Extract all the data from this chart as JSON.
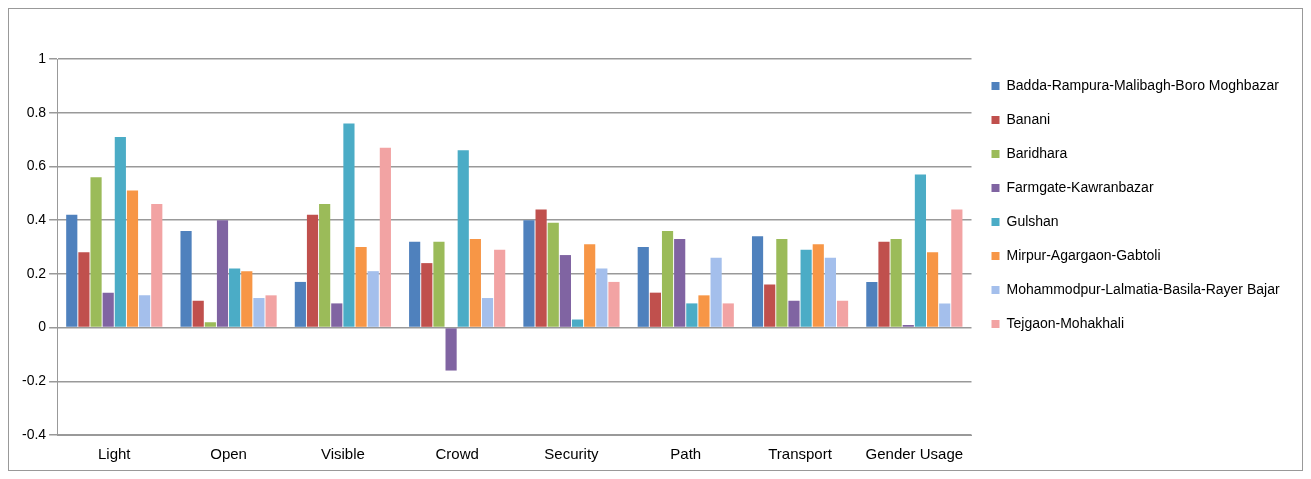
{
  "chart_data": {
    "type": "bar",
    "categories": [
      "Light",
      "Open",
      "Visible",
      "Crowd",
      "Security",
      "Path",
      "Transport",
      "Gender Usage"
    ],
    "series": [
      {
        "name": "Badda-Rampura-Malibagh-Boro Moghbazar",
        "color": "#4f81bd",
        "values": [
          0.42,
          0.36,
          0.17,
          0.32,
          0.4,
          0.3,
          0.34,
          0.17
        ]
      },
      {
        "name": "Banani",
        "color": "#c0504d",
        "values": [
          0.28,
          0.1,
          0.42,
          0.24,
          0.44,
          0.13,
          0.16,
          0.32
        ]
      },
      {
        "name": "Baridhara",
        "color": "#9bbb59",
        "values": [
          0.56,
          0.02,
          0.46,
          0.32,
          0.39,
          0.36,
          0.33,
          0.33
        ]
      },
      {
        "name": "Farmgate-Kawranbazar",
        "color": "#8064a2",
        "values": [
          0.13,
          0.4,
          0.09,
          -0.16,
          0.27,
          0.33,
          0.1,
          0.01
        ]
      },
      {
        "name": "Gulshan",
        "color": "#4bacc6",
        "values": [
          0.71,
          0.22,
          0.76,
          0.66,
          0.03,
          0.09,
          0.29,
          0.57
        ]
      },
      {
        "name": "Mirpur-Agargaon-Gabtoli",
        "color": "#f79646",
        "values": [
          0.51,
          0.21,
          0.3,
          0.33,
          0.31,
          0.12,
          0.31,
          0.28
        ]
      },
      {
        "name": "Mohammodpur-Lalmatia-Basila-Rayer Bajar",
        "color": "#a4bfec",
        "values": [
          0.12,
          0.11,
          0.21,
          0.11,
          0.22,
          0.26,
          0.26,
          0.09
        ]
      },
      {
        "name": "Tejgaon-Mohakhali",
        "color": "#f2a3a3",
        "values": [
          0.46,
          0.12,
          0.67,
          0.29,
          0.17,
          0.09,
          0.1,
          0.44
        ]
      }
    ],
    "ylim": [
      -0.4,
      1
    ],
    "yticks": [
      -0.4,
      -0.2,
      0,
      0.2,
      0.4,
      0.6,
      0.8,
      1
    ],
    "grid": "y",
    "legend": "right"
  }
}
